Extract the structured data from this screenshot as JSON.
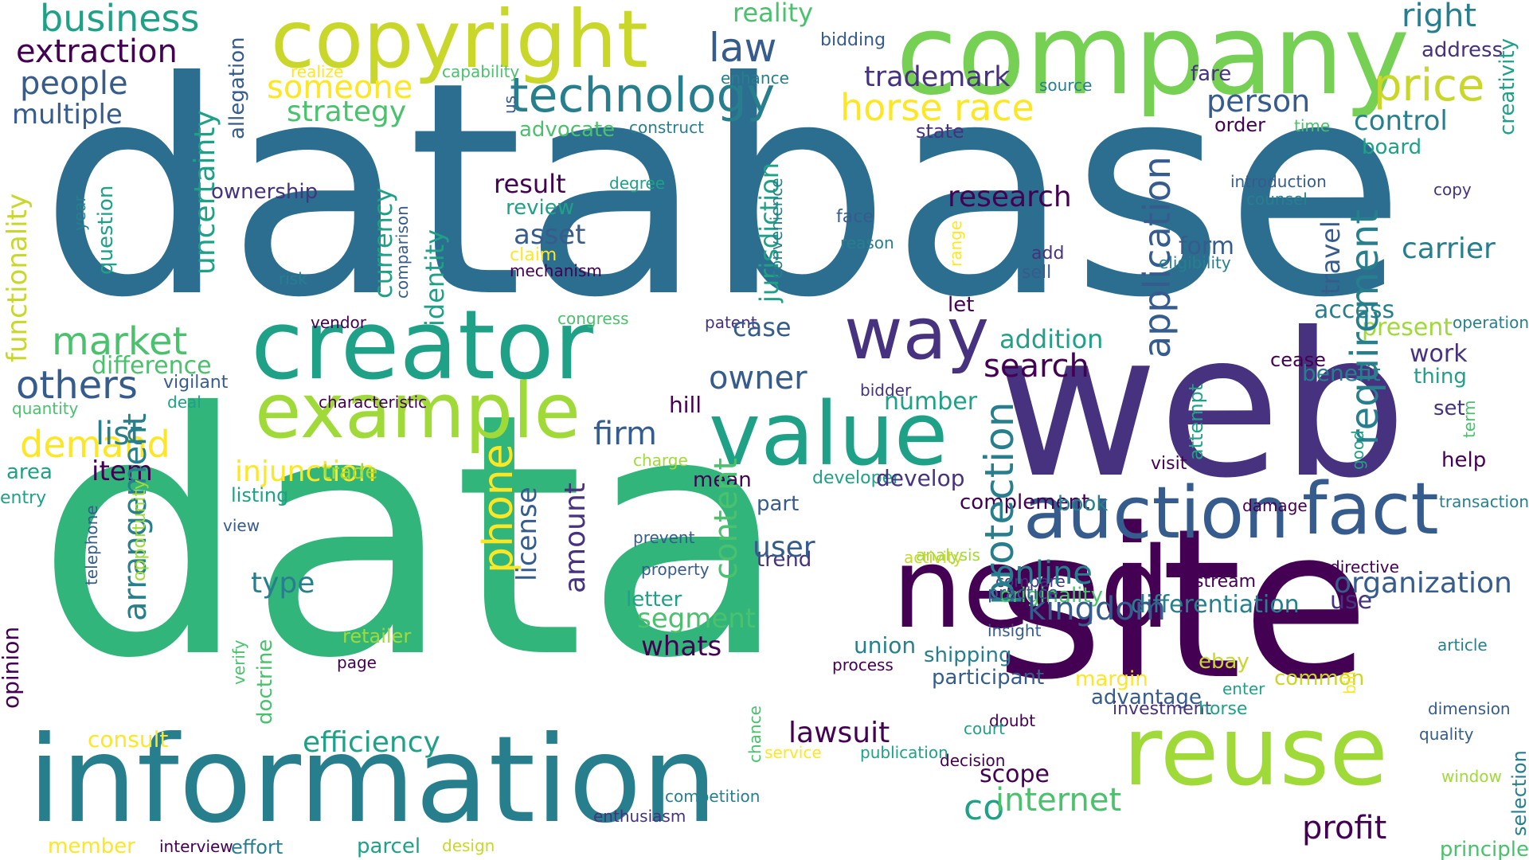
{
  "palette": {
    "c1": "#440154",
    "c2": "#46327e",
    "c3": "#365c8d",
    "c4": "#277f8e",
    "c5": "#1fa187",
    "c6": "#4ac16d",
    "c7": "#a0da39",
    "c8": "#c9d72a",
    "c9": "#fde725",
    "c10": "#2c6e8f",
    "c11": "#31b57b",
    "c12": "#76d054"
  },
  "words": [
    {
      "text": "database",
      "c": "c10"
    },
    {
      "text": "data",
      "c": "c11"
    },
    {
      "text": "company",
      "c": "c12"
    },
    {
      "text": "web",
      "c": "c2"
    },
    {
      "text": "site",
      "c": "c1"
    },
    {
      "text": "information",
      "c": "c4"
    },
    {
      "text": "copyright",
      "c": "c8"
    },
    {
      "text": "creator",
      "c": "c5"
    },
    {
      "text": "example",
      "c": "c7"
    },
    {
      "text": "value",
      "c": "c5"
    },
    {
      "text": "way",
      "c": "c2"
    },
    {
      "text": "auction",
      "c": "c3"
    },
    {
      "text": "fact",
      "c": "c3"
    },
    {
      "text": "reuse",
      "c": "c7"
    },
    {
      "text": "technology",
      "c": "c4"
    },
    {
      "text": "business",
      "c": "c5"
    },
    {
      "text": "extraction",
      "c": "c1"
    },
    {
      "text": "people",
      "c": "c3"
    },
    {
      "text": "multiple",
      "c": "c3"
    },
    {
      "text": "someone",
      "c": "c9"
    },
    {
      "text": "strategy",
      "c": "c6"
    },
    {
      "text": "law",
      "c": "c3"
    },
    {
      "text": "reality",
      "c": "c6"
    },
    {
      "text": "bidding",
      "c": "c3"
    },
    {
      "text": "right",
      "c": "c4"
    },
    {
      "text": "address",
      "c": "c2"
    },
    {
      "text": "price",
      "c": "c8"
    },
    {
      "text": "creativity",
      "c": "c5"
    },
    {
      "text": "trademark",
      "c": "c2"
    },
    {
      "text": "horse race",
      "c": "c9"
    },
    {
      "text": "person",
      "c": "c3"
    },
    {
      "text": "control",
      "c": "c4"
    },
    {
      "text": "fare",
      "c": "c2"
    },
    {
      "text": "order",
      "c": "c1"
    },
    {
      "text": "time",
      "c": "c6"
    },
    {
      "text": "board",
      "c": "c5"
    },
    {
      "text": "state",
      "c": "c2"
    },
    {
      "text": "source",
      "c": "c4"
    },
    {
      "text": "realize",
      "c": "c9"
    },
    {
      "text": "capability",
      "c": "c6"
    },
    {
      "text": "enhance",
      "c": "c4"
    },
    {
      "text": "advocate",
      "c": "c6"
    },
    {
      "text": "construct",
      "c": "c4"
    },
    {
      "text": "us",
      "c": "c3"
    },
    {
      "text": "application",
      "c": "c3"
    },
    {
      "text": "research",
      "c": "c1"
    },
    {
      "text": "result",
      "c": "c1"
    },
    {
      "text": "degree",
      "c": "c5"
    },
    {
      "text": "review",
      "c": "c5"
    },
    {
      "text": "asset",
      "c": "c3"
    },
    {
      "text": "claim",
      "c": "c9"
    },
    {
      "text": "mechanism",
      "c": "c1"
    },
    {
      "text": "ownership",
      "c": "c2"
    },
    {
      "text": "functionality",
      "c": "c8"
    },
    {
      "text": "uncertainty",
      "c": "c5"
    },
    {
      "text": "allegation",
      "c": "c3"
    },
    {
      "text": "currency",
      "c": "c5"
    },
    {
      "text": "identity",
      "c": "c5"
    },
    {
      "text": "comparison",
      "c": "c3"
    },
    {
      "text": "jurisdiction",
      "c": "c5"
    },
    {
      "text": "convenience",
      "c": "c4"
    },
    {
      "text": "travel",
      "c": "c3"
    },
    {
      "text": "question",
      "c": "c5"
    },
    {
      "text": "year",
      "c": "c4"
    },
    {
      "text": "risk",
      "c": "c4"
    },
    {
      "text": "introduction",
      "c": "c3"
    },
    {
      "text": "counsel",
      "c": "c4"
    },
    {
      "text": "copy",
      "c": "c2"
    },
    {
      "text": "face",
      "c": "c3"
    },
    {
      "text": "reason",
      "c": "c4"
    },
    {
      "text": "range",
      "c": "c9"
    },
    {
      "text": "add",
      "c": "c2"
    },
    {
      "text": "sell",
      "c": "c3"
    },
    {
      "text": "form",
      "c": "c3"
    },
    {
      "text": "eligibility",
      "c": "c4"
    },
    {
      "text": "carrier",
      "c": "c4"
    },
    {
      "text": "market",
      "c": "c6"
    },
    {
      "text": "others",
      "c": "c3"
    },
    {
      "text": "difference",
      "c": "c6"
    },
    {
      "text": "vigilant",
      "c": "c3"
    },
    {
      "text": "quantity",
      "c": "c6"
    },
    {
      "text": "deal",
      "c": "c5"
    },
    {
      "text": "characteristic",
      "c": "c1"
    },
    {
      "text": "vendor",
      "c": "c1"
    },
    {
      "text": "need",
      "c": "c1"
    },
    {
      "text": "congress",
      "c": "c6"
    },
    {
      "text": "patent",
      "c": "c2"
    },
    {
      "text": "case",
      "c": "c3"
    },
    {
      "text": "let",
      "c": "c1"
    },
    {
      "text": "addition",
      "c": "c5"
    },
    {
      "text": "search",
      "c": "c1"
    },
    {
      "text": "owner",
      "c": "c3"
    },
    {
      "text": "number",
      "c": "c5"
    },
    {
      "text": "access",
      "c": "c4"
    },
    {
      "text": "present",
      "c": "c7"
    },
    {
      "text": "operation",
      "c": "c4"
    },
    {
      "text": "work",
      "c": "c2"
    },
    {
      "text": "cease",
      "c": "c1"
    },
    {
      "text": "benefit",
      "c": "c4"
    },
    {
      "text": "set",
      "c": "c2"
    },
    {
      "text": "attempt",
      "c": "c5"
    },
    {
      "text": "thing",
      "c": "c5"
    },
    {
      "text": "requirement",
      "c": "c4"
    },
    {
      "text": "bidder",
      "c": "c2"
    },
    {
      "text": "demand",
      "c": "c9"
    },
    {
      "text": "list",
      "c": "c4"
    },
    {
      "text": "item",
      "c": "c1"
    },
    {
      "text": "area",
      "c": "c5"
    },
    {
      "text": "entry",
      "c": "c5"
    },
    {
      "text": "firm",
      "c": "c3"
    },
    {
      "text": "hill",
      "c": "c1"
    },
    {
      "text": "injunction",
      "c": "c9"
    },
    {
      "text": "trade",
      "c": "c7"
    },
    {
      "text": "listing",
      "c": "c5"
    },
    {
      "text": "view",
      "c": "c3"
    },
    {
      "text": "charge",
      "c": "c7"
    },
    {
      "text": "mean",
      "c": "c1"
    },
    {
      "text": "developer",
      "c": "c5"
    },
    {
      "text": "develop",
      "c": "c2"
    },
    {
      "text": "visit",
      "c": "c1"
    },
    {
      "text": "good",
      "c": "c5"
    },
    {
      "text": "help",
      "c": "c1"
    },
    {
      "text": "complement",
      "c": "c1"
    },
    {
      "text": "book",
      "c": "c4"
    },
    {
      "text": "damage",
      "c": "c1"
    },
    {
      "text": "transaction",
      "c": "c4"
    },
    {
      "text": "type",
      "c": "c4"
    },
    {
      "text": "trend",
      "c": "c2"
    },
    {
      "text": "term",
      "c": "c6"
    },
    {
      "text": "analysis",
      "c": "c7"
    },
    {
      "text": "compare",
      "c": "c2"
    },
    {
      "text": "protection",
      "c": "c4"
    },
    {
      "text": "differentiation",
      "c": "c4"
    },
    {
      "text": "originality",
      "c": "c6"
    },
    {
      "text": "use",
      "c": "c2"
    },
    {
      "text": "phone",
      "c": "c9"
    },
    {
      "text": "license",
      "c": "c3"
    },
    {
      "text": "amount",
      "c": "c2"
    },
    {
      "text": "content",
      "c": "c6"
    },
    {
      "text": "part",
      "c": "c3"
    },
    {
      "text": "user",
      "c": "c3"
    },
    {
      "text": "online",
      "c": "c4"
    },
    {
      "text": "activity",
      "c": "c8"
    },
    {
      "text": "directive",
      "c": "c1"
    },
    {
      "text": "article",
      "c": "c4"
    },
    {
      "text": "organization",
      "c": "c3"
    },
    {
      "text": "stream",
      "c": "c1"
    },
    {
      "text": "practice",
      "c": "c3"
    },
    {
      "text": "kingdom",
      "c": "c3"
    },
    {
      "text": "insight",
      "c": "c3"
    },
    {
      "text": "arrangement",
      "c": "c4"
    },
    {
      "text": "opportunity",
      "c": "c7"
    },
    {
      "text": "telephone",
      "c": "c3"
    },
    {
      "text": "opinion",
      "c": "c1"
    },
    {
      "text": "verify",
      "c": "c6"
    },
    {
      "text": "doctrine",
      "c": "c6"
    },
    {
      "text": "prevent",
      "c": "c3"
    },
    {
      "text": "property",
      "c": "c3"
    },
    {
      "text": "letter",
      "c": "c5"
    },
    {
      "text": "segment",
      "c": "c6"
    },
    {
      "text": "whats",
      "c": "c1"
    },
    {
      "text": "retailer",
      "c": "c7"
    },
    {
      "text": "page",
      "c": "c1"
    },
    {
      "text": "union",
      "c": "c4"
    },
    {
      "text": "process",
      "c": "c1"
    },
    {
      "text": "shipping",
      "c": "c4"
    },
    {
      "text": "participant",
      "c": "c3"
    },
    {
      "text": "ebay",
      "c": "c8"
    },
    {
      "text": "enter",
      "c": "c5"
    },
    {
      "text": "common",
      "c": "c8"
    },
    {
      "text": "bill",
      "c": "c9"
    },
    {
      "text": "margin",
      "c": "c9"
    },
    {
      "text": "advantage",
      "c": "c3"
    },
    {
      "text": "investment",
      "c": "c2"
    },
    {
      "text": "horse",
      "c": "c5"
    },
    {
      "text": "doubt",
      "c": "c1"
    },
    {
      "text": "dimension",
      "c": "c3"
    },
    {
      "text": "quality",
      "c": "c3"
    },
    {
      "text": "principle",
      "c": "c6"
    },
    {
      "text": "consult",
      "c": "c9"
    },
    {
      "text": "efficiency",
      "c": "c5"
    },
    {
      "text": "lawsuit",
      "c": "c1"
    },
    {
      "text": "court",
      "c": "c5"
    },
    {
      "text": "service",
      "c": "c9"
    },
    {
      "text": "decision",
      "c": "c1"
    },
    {
      "text": "publication",
      "c": "c5"
    },
    {
      "text": "chance",
      "c": "c6"
    },
    {
      "text": "scope",
      "c": "c1"
    },
    {
      "text": "co",
      "c": "c5"
    },
    {
      "text": "internet",
      "c": "c6"
    },
    {
      "text": "profit",
      "c": "c1"
    },
    {
      "text": "selection",
      "c": "c4"
    },
    {
      "text": "window",
      "c": "c7"
    },
    {
      "text": "competition",
      "c": "c4"
    },
    {
      "text": "enthusiasm",
      "c": "c2"
    },
    {
      "text": "member",
      "c": "c9"
    },
    {
      "text": "interview",
      "c": "c1"
    },
    {
      "text": "effort",
      "c": "c4"
    },
    {
      "text": "parcel",
      "c": "c5"
    },
    {
      "text": "design",
      "c": "c8"
    }
  ]
}
